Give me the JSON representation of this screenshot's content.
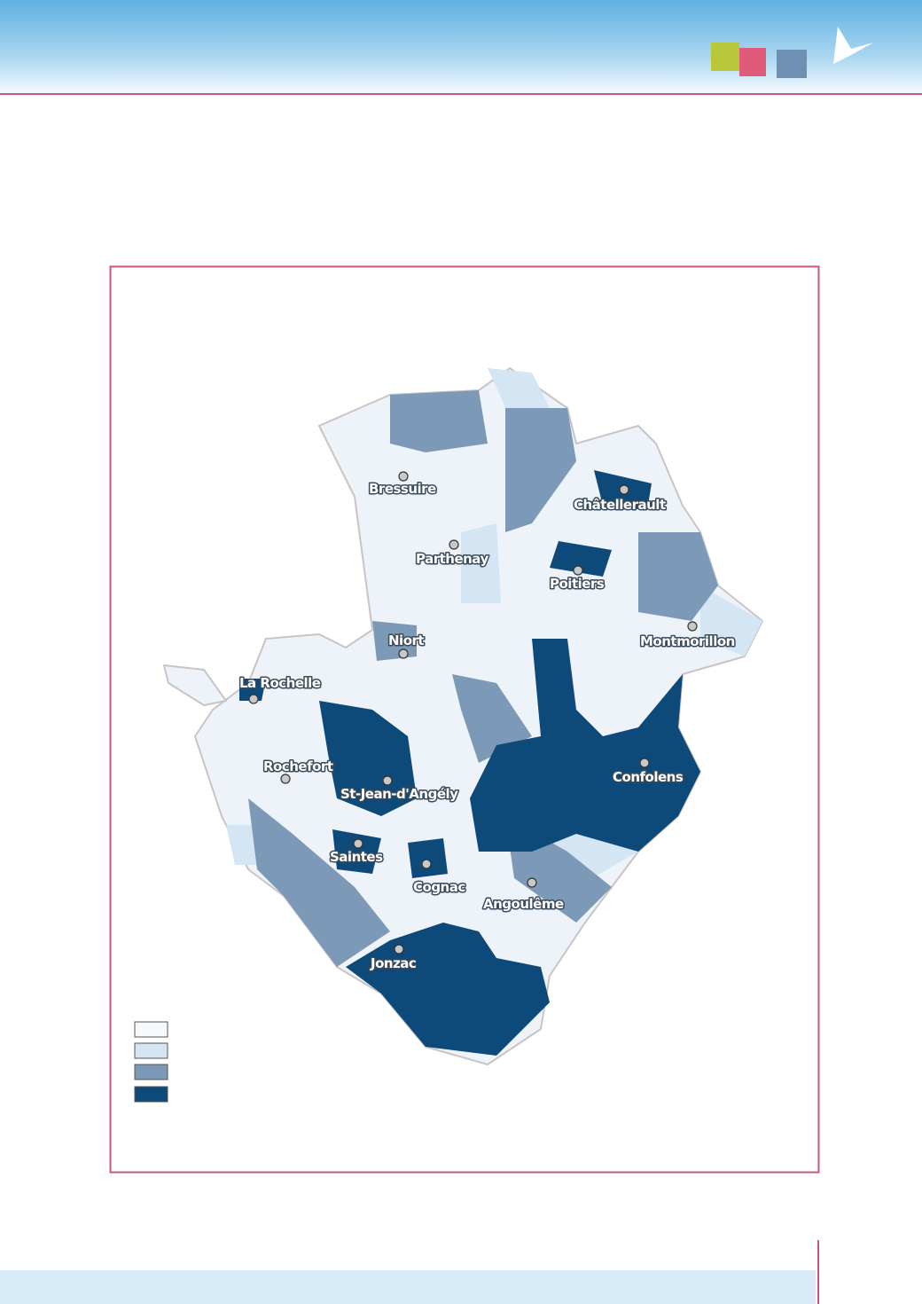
{
  "map": {
    "cities": [
      "Bressuire",
      "Châtellerault",
      "Parthenay",
      "Poitiers",
      "Niort",
      "Montmorillon",
      "La Rochelle",
      "Rochefort",
      "St-Jean-d'Angély",
      "Confolens",
      "Saintes",
      "Cognac",
      "Angoulême",
      "Jonzac"
    ]
  }
}
